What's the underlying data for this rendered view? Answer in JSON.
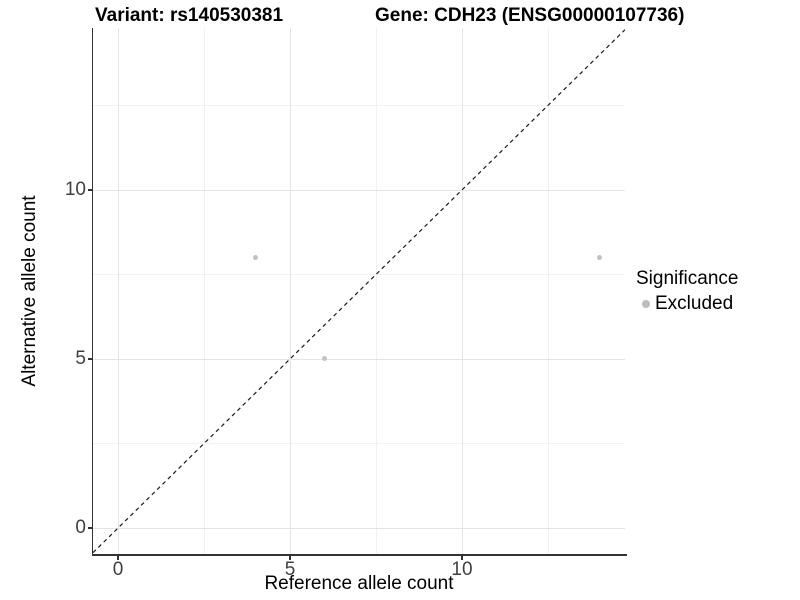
{
  "chart_data": {
    "type": "scatter",
    "titles": {
      "variant": "Variant: rs140530381",
      "gene": "Gene: CDH23 (ENSG00000107736)"
    },
    "xlabel": "Reference allele count",
    "ylabel": "Alternative allele count",
    "x_ticks": [
      0,
      5,
      10
    ],
    "y_ticks": [
      0,
      5,
      10
    ],
    "x_minor_gridlines": [
      2.5,
      7.5,
      12.5
    ],
    "y_minor_gridlines": [
      2.5,
      7.5,
      12.5
    ],
    "xlim": [
      -0.73,
      14.74
    ],
    "ylim": [
      -0.77,
      14.79
    ],
    "grid": true,
    "legend_position": "right",
    "series": [
      {
        "name": "Excluded",
        "color": "#c2c2c2",
        "points": [
          {
            "x": 4,
            "y": 8
          },
          {
            "x": 6,
            "y": 5
          },
          {
            "x": 14,
            "y": 8
          }
        ]
      }
    ],
    "identity_line": {
      "style": "dashed",
      "equation": "y = x",
      "from": [
        -0.73,
        -0.73
      ],
      "to": [
        14.74,
        14.74
      ],
      "color": "#1a1a1a"
    },
    "legend": {
      "title": "Significance",
      "items": [
        {
          "label": "Excluded",
          "color": "#bdbdbd"
        }
      ]
    },
    "colors": {
      "background": "#ffffff",
      "major_grid": "#e4e4e4",
      "minor_grid": "#f2f2f2",
      "axis_line": "#333333",
      "tick_label": "#404040"
    }
  }
}
